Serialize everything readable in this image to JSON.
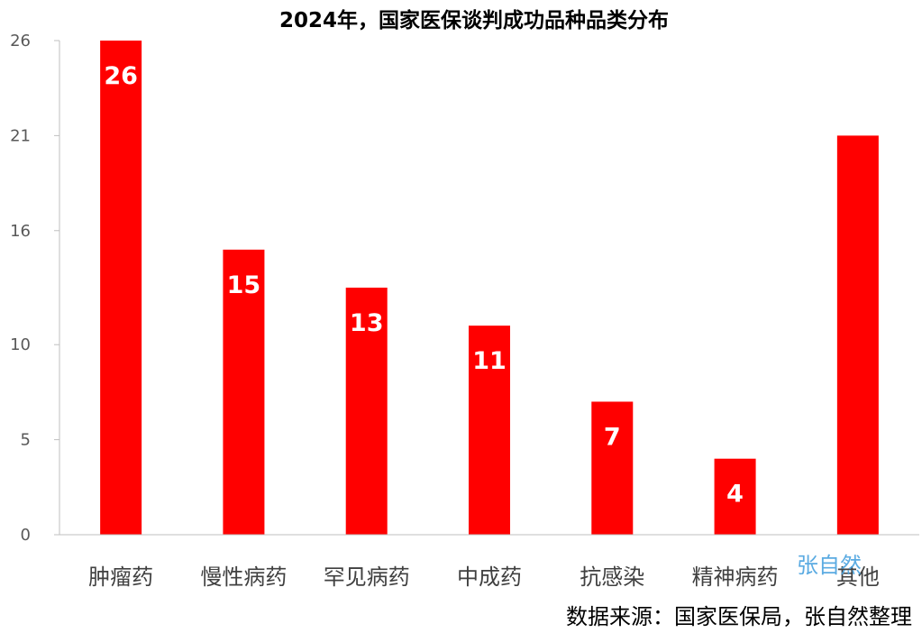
{
  "chart_data": {
    "type": "bar",
    "title": "2024年，国家医保谈判成功品种品类分布",
    "categories": [
      "肿瘤药",
      "慢性病药",
      "罕见病药",
      "中成药",
      "抗感染",
      "精神病药",
      "其他"
    ],
    "values": [
      26,
      15,
      13,
      11,
      7,
      4,
      21
    ],
    "data_labels": [
      "26",
      "15",
      "13",
      "11",
      "7",
      "4",
      ""
    ],
    "yticks": [
      0,
      5,
      10,
      16,
      21,
      26
    ],
    "ylim": [
      0,
      26
    ],
    "bar_color": "#ff0000",
    "grid": false,
    "legend": "none"
  },
  "source_note": "数据来源：国家医保局，张自然整理",
  "watermark": "张自然"
}
